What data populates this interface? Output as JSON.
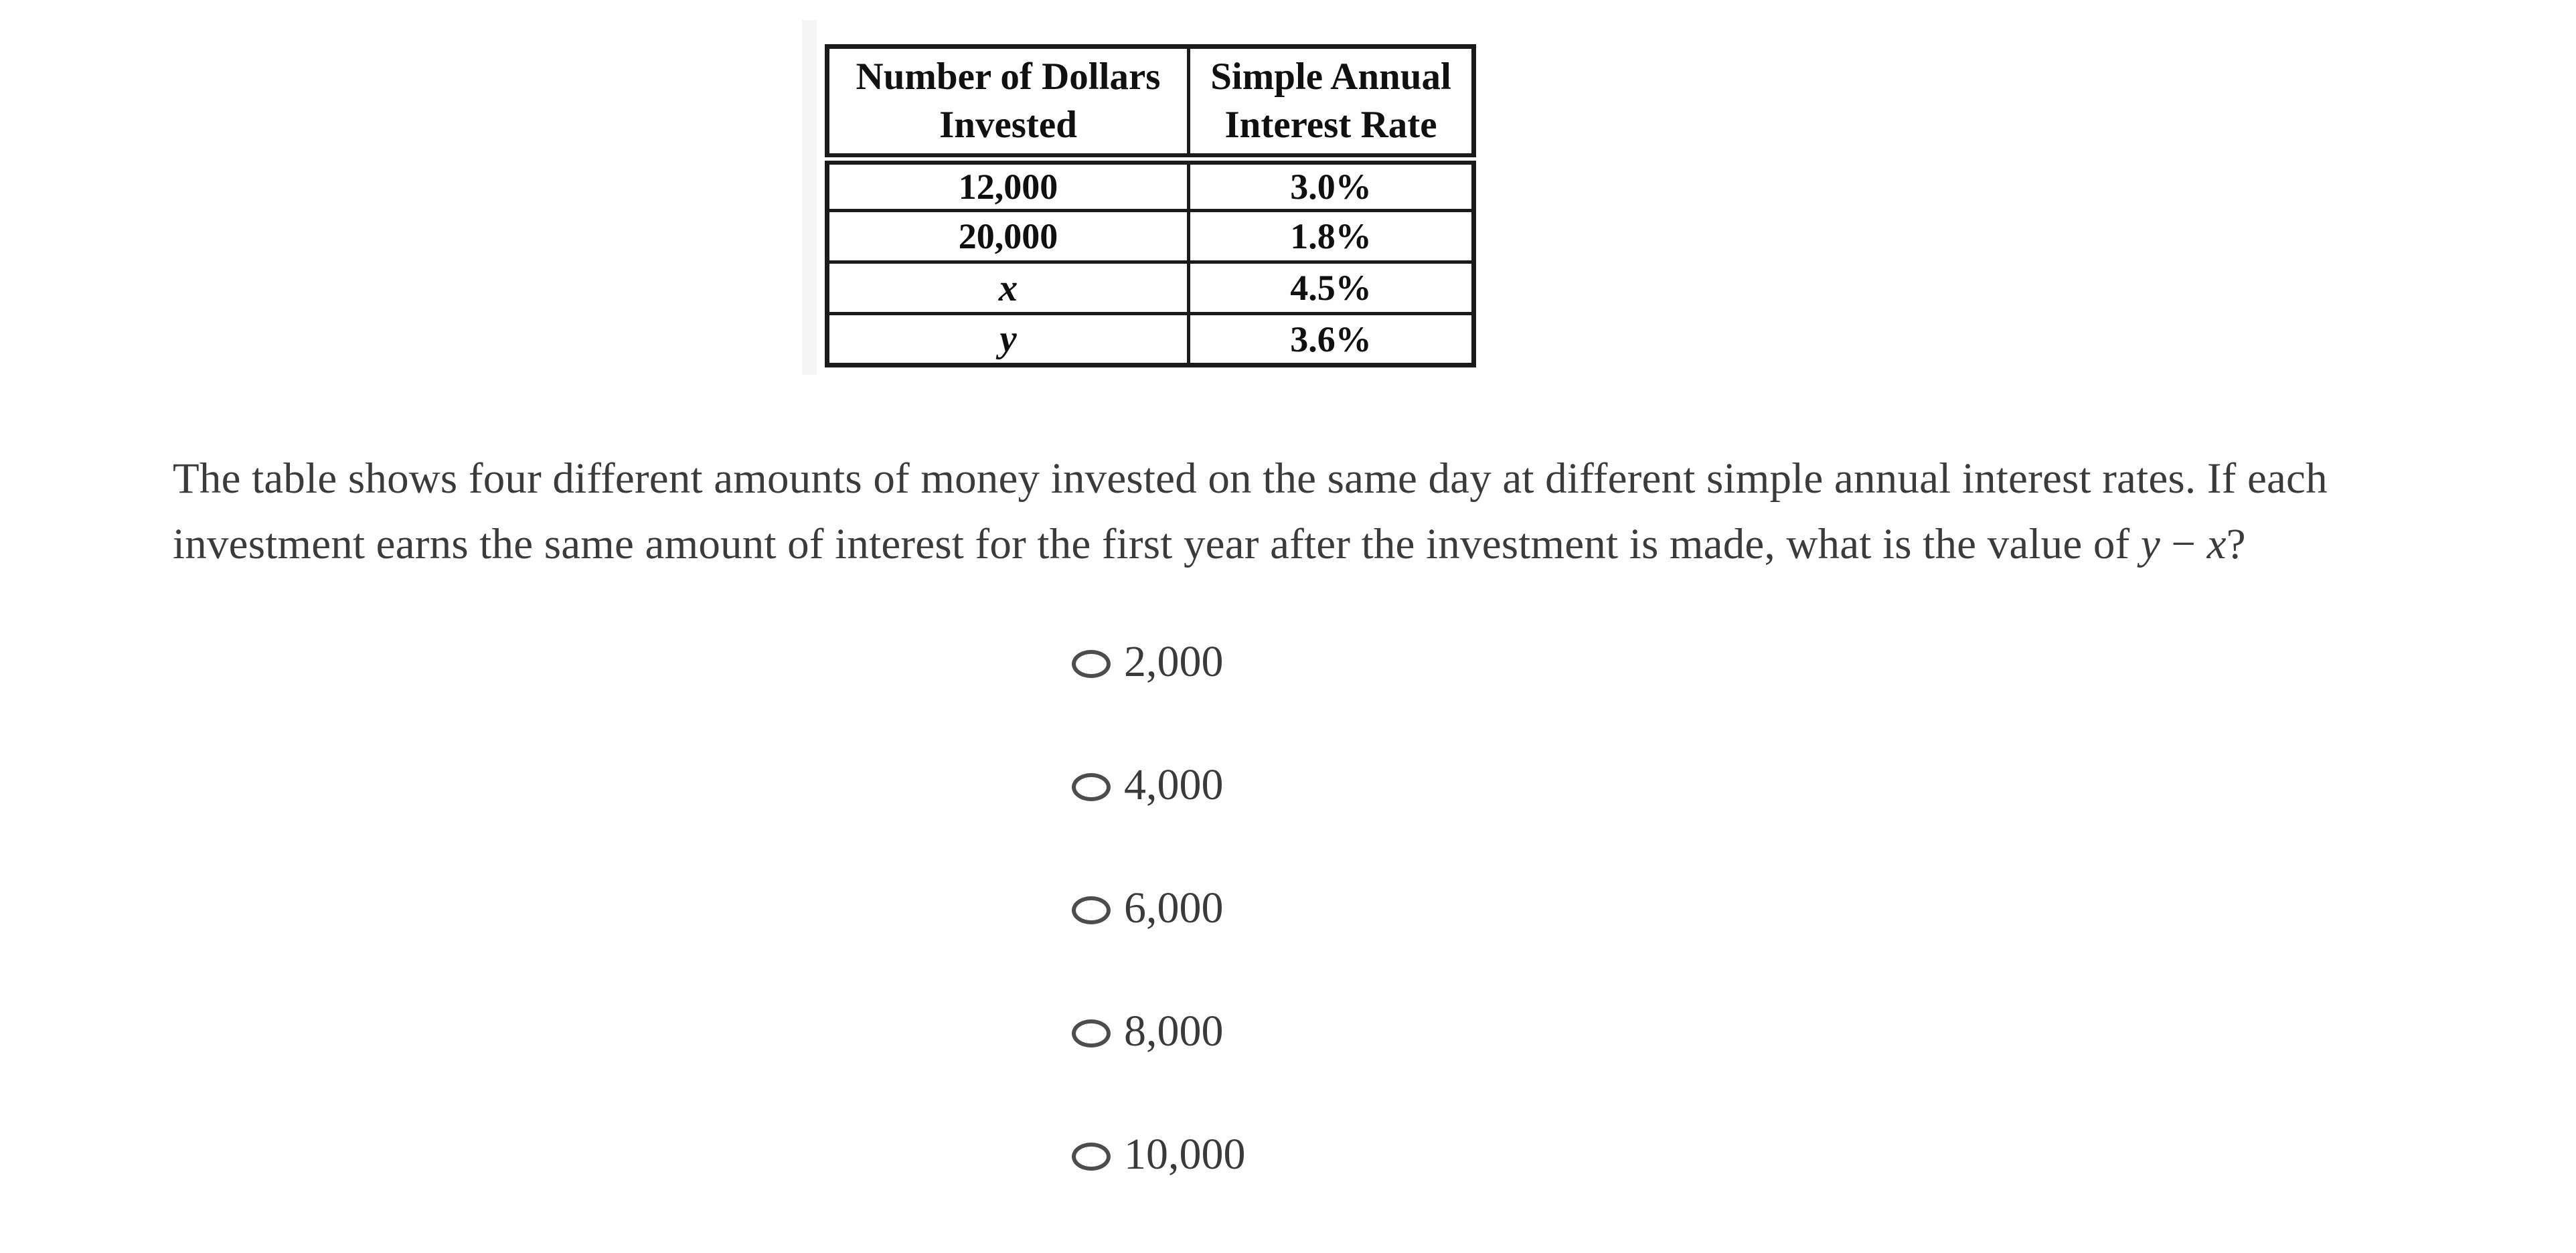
{
  "table": {
    "col1_header": "Number of Dollars Invested",
    "col2_header": "Simple Annual Interest Rate",
    "rows": [
      {
        "amount": "12,000",
        "rate": "3.0%"
      },
      {
        "amount": "20,000",
        "rate": "1.8%"
      },
      {
        "amount": "x",
        "rate": "4.5%"
      },
      {
        "amount": "y",
        "rate": "3.6%"
      }
    ]
  },
  "question": {
    "line1": "The table shows four different amounts of money invested on the same day at different simple annual interest rates. If each",
    "line2_prefix": "investment earns the same amount of interest for the first year after the investment is made, what is the value of ",
    "expr_y": "y",
    "expr_minus": " − ",
    "expr_x": "x",
    "suffix": "?"
  },
  "options": [
    {
      "label": "2,000"
    },
    {
      "label": "4,000"
    },
    {
      "label": "6,000"
    },
    {
      "label": "8,000"
    },
    {
      "label": "10,000"
    }
  ],
  "colors": {
    "background": "#ffffff",
    "table_border": "#1b1b1b",
    "table_text": "#101010",
    "body_text": "#3b3b3b",
    "radio_outline": "#4d4d4d"
  }
}
